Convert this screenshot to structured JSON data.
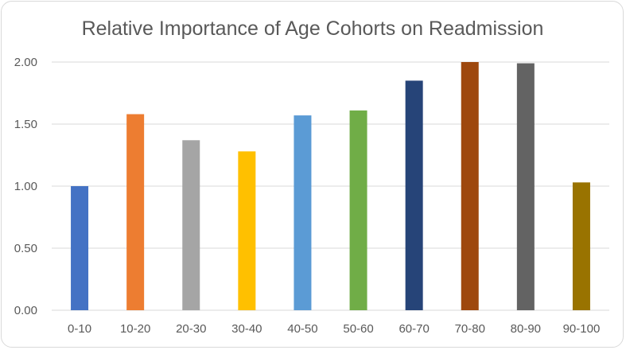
{
  "chart_data": {
    "type": "bar",
    "title": "Relative Importance of Age Cohorts on Readmission",
    "xlabel": "",
    "ylabel": "",
    "categories": [
      "0-10",
      "10-20",
      "20-30",
      "30-40",
      "40-50",
      "50-60",
      "60-70",
      "70-80",
      "80-90",
      "90-100"
    ],
    "values": [
      1.0,
      1.58,
      1.37,
      1.28,
      1.57,
      1.61,
      1.85,
      2.0,
      1.99,
      1.03
    ],
    "colors": [
      "#4472c4",
      "#ed7d31",
      "#a5a5a5",
      "#ffc000",
      "#5b9bd5",
      "#70ad47",
      "#264478",
      "#9e480e",
      "#636363",
      "#997300"
    ],
    "ylim": [
      0,
      2.0
    ],
    "yticks": [
      "0.00",
      "0.50",
      "1.00",
      "1.50",
      "2.00"
    ],
    "grid": true,
    "legend": "none"
  }
}
